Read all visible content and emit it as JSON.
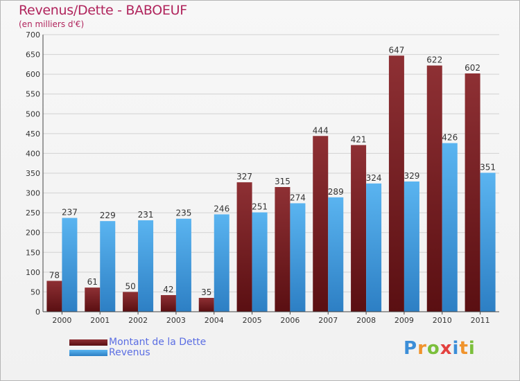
{
  "chart_data": {
    "type": "bar",
    "title": "Revenus/Dette - BABOEUF",
    "subtitle": "(en milliers d'€)",
    "categories": [
      "2000",
      "2001",
      "2002",
      "2003",
      "2004",
      "2005",
      "2006",
      "2007",
      "2008",
      "2009",
      "2010",
      "2011"
    ],
    "series": [
      {
        "name": "Montant de la Dette",
        "color": "#7a1f22",
        "values": [
          78,
          61,
          50,
          42,
          35,
          327,
          315,
          444,
          421,
          647,
          622,
          602
        ]
      },
      {
        "name": "Revenus",
        "color": "#3d9ee6",
        "values": [
          237,
          229,
          231,
          235,
          246,
          251,
          274,
          289,
          324,
          329,
          426,
          351
        ]
      }
    ],
    "ylim": [
      0,
      700
    ],
    "yticks": [
      0,
      50,
      100,
      150,
      200,
      250,
      300,
      350,
      400,
      450,
      500,
      550,
      600,
      650,
      700
    ],
    "grid": true,
    "legend": "bottom-left"
  },
  "logo": {
    "letters": [
      "P",
      "r",
      "o",
      "x",
      "i",
      "t",
      "i"
    ]
  }
}
